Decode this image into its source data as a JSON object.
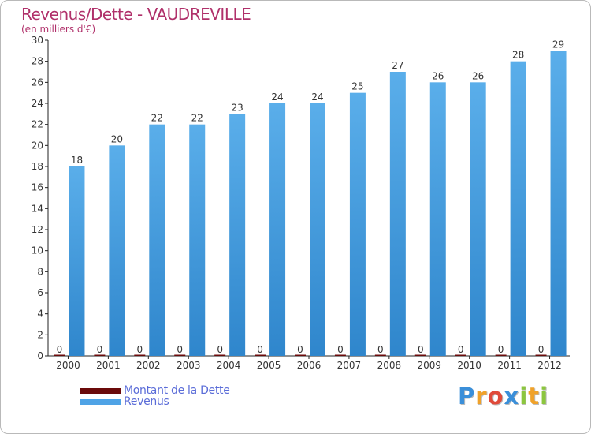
{
  "chart_data": {
    "type": "bar",
    "title": "Revenus/Dette - VAUDREVILLE",
    "subtitle": "(en milliers d'€)",
    "xlabel": "",
    "ylabel": "",
    "categories": [
      "2000",
      "2001",
      "2002",
      "2003",
      "2004",
      "2005",
      "2006",
      "2007",
      "2008",
      "2009",
      "2010",
      "2011",
      "2012"
    ],
    "series": [
      {
        "name": "Montant de la Dette",
        "color": "#6b0a0a",
        "values": [
          0,
          0,
          0,
          0,
          0,
          0,
          0,
          0,
          0,
          0,
          0,
          0,
          0
        ]
      },
      {
        "name": "Revenus",
        "color": "#4fa3e6",
        "values": [
          18,
          20,
          22,
          22,
          23,
          24,
          24,
          25,
          27,
          26,
          26,
          28,
          29
        ]
      }
    ],
    "ylim": [
      0,
      30
    ],
    "yticks": [
      0,
      2,
      4,
      6,
      8,
      10,
      12,
      14,
      16,
      18,
      20,
      22,
      24,
      26,
      28,
      30
    ],
    "grid": false,
    "legend": "bottom-left"
  },
  "legend": {
    "items": [
      {
        "label": "Montant de la Dette",
        "color": "#6b0a0a"
      },
      {
        "label": "Revenus",
        "color": "#4fa3e6"
      }
    ]
  },
  "logo": {
    "letters": [
      "P",
      "r",
      "o",
      "x",
      "i",
      "t",
      "i"
    ],
    "colors": [
      "#3b8fd9",
      "#f0a22a",
      "#e04a3a",
      "#3b8fd9",
      "#8cc63e",
      "#f0a22a",
      "#8cc63e"
    ]
  }
}
